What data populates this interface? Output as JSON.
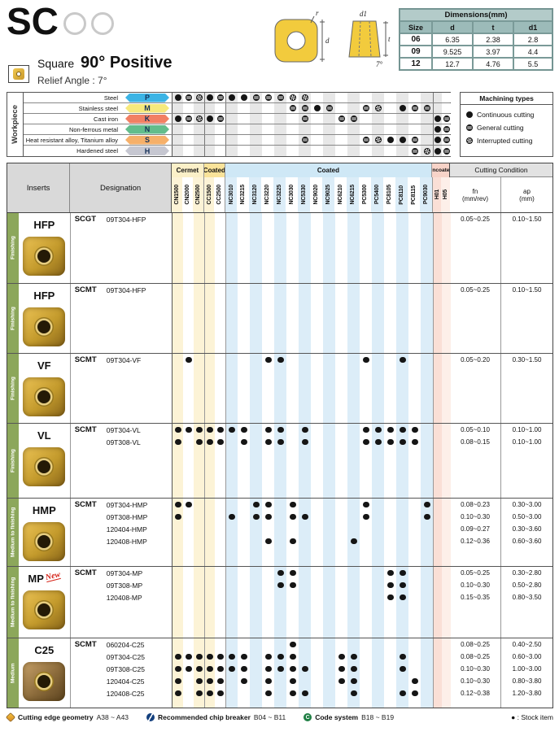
{
  "header": {
    "brand": "SC",
    "shape_label": "Square",
    "title": "90° Positive",
    "relief": "Relief Angle : 7°"
  },
  "drawing_labels": {
    "d": "d",
    "r": "r",
    "t": "t",
    "d1": "d1",
    "angle": "7°"
  },
  "dimensions": {
    "title": "Dimensions(mm)",
    "columns": [
      "Size",
      "d",
      "t",
      "d1"
    ],
    "rows": [
      [
        "06",
        "6.35",
        "2.38",
        "2.8"
      ],
      [
        "09",
        "9.525",
        "3.97",
        "4.4"
      ],
      [
        "12",
        "12.7",
        "4.76",
        "5.5"
      ]
    ]
  },
  "workpiece": {
    "label": "Workpiece",
    "rows": [
      {
        "name": "Steel",
        "code": "P",
        "color": "#3cb4e5",
        "symbols": {
          "CN1500": "c",
          "CN2000": "g",
          "CN2500": "i",
          "CC1500": "c",
          "CC2500": "g",
          "NC3010": "c",
          "NC3215": "c",
          "NC3120": "g",
          "NC3220": "g",
          "NC3225": "g",
          "NC3030": "i",
          "NC5330": "i"
        }
      },
      {
        "name": "Stainless steel",
        "code": "M",
        "color": "#f6e97c",
        "symbols": {
          "NC3030": "g",
          "NC5330": "g",
          "NC9020": "c",
          "NC9025": "g",
          "PC5300": "g",
          "PC5400": "i",
          "PC8110": "c",
          "PC8115": "g",
          "PC9030": "g"
        }
      },
      {
        "name": "Cast iron",
        "code": "K",
        "color": "#f28064",
        "symbols": {
          "CN1500": "c",
          "CN2000": "g",
          "CN2500": "i",
          "CC1500": "c",
          "CC2500": "g",
          "NC5330": "g",
          "NC6210": "g",
          "NC6215": "g",
          "H01": "c",
          "H05": "g"
        }
      },
      {
        "name": "Non-ferrous metal",
        "code": "N",
        "color": "#63bd8c",
        "symbols": {
          "H01": "c",
          "H05": "g"
        }
      },
      {
        "name": "Heat resistant alloy, Titanium alloy",
        "code": "S",
        "color": "#f6b06a",
        "symbols": {
          "NC5330": "g",
          "PC5300": "g",
          "PC5400": "i",
          "PC8105": "c",
          "PC8110": "c",
          "PC8115": "g",
          "H01": "c",
          "H05": "g"
        }
      },
      {
        "name": "Hardened steel",
        "code": "H",
        "color": "#c6c7d1",
        "symbols": {
          "PC8115": "g",
          "PC9030": "i",
          "H01": "c",
          "H05": "g"
        }
      }
    ],
    "legend": {
      "title": "Machining types",
      "items": [
        {
          "symbol": "c",
          "label": "Continuous cutting"
        },
        {
          "symbol": "g",
          "label": "General cutting"
        },
        {
          "symbol": "i",
          "label": "Interrupted cutting"
        }
      ]
    }
  },
  "grade_groups": [
    {
      "label": "Cermet",
      "type": "cermet",
      "grades": [
        "CN1500",
        "CN2000",
        "CN2500"
      ]
    },
    {
      "label": "Coated",
      "type": "coated-y",
      "grades": [
        "CC1500",
        "CC2500"
      ]
    },
    {
      "label": "Coated",
      "type": "coated-b",
      "grades": [
        "NC3010",
        "NC3215",
        "NC3120",
        "NC3220",
        "NC3225",
        "NC3030",
        "NC5330",
        "NC9020",
        "NC9025",
        "NC6210",
        "NC6215",
        "PC5300",
        "PC5400",
        "PC8105",
        "PC8110",
        "PC8115",
        "PC9030"
      ]
    },
    {
      "label": "Uncoated",
      "type": "uncoated",
      "grades": [
        "H01",
        "H05"
      ]
    }
  ],
  "main_headers": {
    "inserts": "Inserts",
    "designation": "Designation",
    "cutting_condition": "Cutting Condition",
    "fn": "fn",
    "fn_unit": "(mm/rev)",
    "ap": "ap",
    "ap_unit": "(mm)"
  },
  "blocks": [
    {
      "label": "HFP",
      "section": "Finishing",
      "series": "SCGT",
      "new_badge": "",
      "style": "gold",
      "rows": [
        {
          "size": "09T304-HFP",
          "dots": [],
          "fn": "0.05~0.25",
          "ap": "0.10~1.50"
        }
      ]
    },
    {
      "label": "HFP",
      "section": "Finishing",
      "series": "SCMT",
      "new_badge": "",
      "style": "gold",
      "rows": [
        {
          "size": "09T304-HFP",
          "dots": [],
          "fn": "0.05~0.25",
          "ap": "0.10~1.50"
        }
      ]
    },
    {
      "label": "VF",
      "section": "Finishing",
      "series": "SCMT",
      "new_badge": "",
      "style": "gold",
      "rows": [
        {
          "size": "09T304-VF",
          "dots": [
            "CN2000",
            "NC3220",
            "NC3225",
            "PC5300",
            "PC8110"
          ],
          "fn": "0.05~0.20",
          "ap": "0.30~1.50"
        }
      ]
    },
    {
      "label": "VL",
      "section": "Finishing",
      "series": "SCMT",
      "new_badge": "",
      "style": "gold",
      "rows": [
        {
          "size": "09T304-VL",
          "dots": [
            "CN1500",
            "CN2000",
            "CN2500",
            "CC1500",
            "CC2500",
            "NC3010",
            "NC3215",
            "NC3220",
            "NC3225",
            "NC5330",
            "PC5300",
            "PC5400",
            "PC8105",
            "PC8110",
            "PC8115"
          ],
          "fn": "0.05~0.10",
          "ap": "0.10~1.00"
        },
        {
          "size": "09T308-VL",
          "dots": [
            "CN1500",
            "CN2500",
            "CC1500",
            "CC2500",
            "NC3215",
            "NC3220",
            "NC3225",
            "NC5330",
            "PC5300",
            "PC5400",
            "PC8105",
            "PC8110",
            "PC8115"
          ],
          "fn": "0.08~0.15",
          "ap": "0.10~1.00"
        }
      ]
    },
    {
      "label": "HMP",
      "section": "Medium to finishing",
      "series": "SCMT",
      "new_badge": "",
      "style": "gold",
      "rows": [
        {
          "size": "09T304-HMP",
          "dots": [
            "CN1500",
            "CN2000",
            "NC3120",
            "NC3220",
            "NC3030",
            "PC5300",
            "PC9030"
          ],
          "fn": "0.08~0.23",
          "ap": "0.30~3.00"
        },
        {
          "size": "09T308-HMP",
          "dots": [
            "CN1500",
            "NC3010",
            "NC3120",
            "NC3220",
            "NC3030",
            "NC5330",
            "PC5300",
            "PC9030"
          ],
          "fn": "0.10~0.30",
          "ap": "0.50~3.00"
        },
        {
          "size": "120404-HMP",
          "dots": [],
          "fn": "0.09~0.27",
          "ap": "0.30~3.60"
        },
        {
          "size": "120408-HMP",
          "dots": [
            "NC3220",
            "NC3030",
            "NC6215"
          ],
          "fn": "0.12~0.36",
          "ap": "0.60~3.60"
        }
      ]
    },
    {
      "label": "MP",
      "section": "Medium to finishing",
      "series": "SCMT",
      "new_badge": "New",
      "style": "gold",
      "rows": [
        {
          "size": "09T304-MP",
          "dots": [
            "NC3225",
            "NC3030",
            "PC8105",
            "PC8110"
          ],
          "fn": "0.05~0.25",
          "ap": "0.30~2.80"
        },
        {
          "size": "09T308-MP",
          "dots": [
            "NC3225",
            "NC3030",
            "PC8105",
            "PC8110"
          ],
          "fn": "0.10~0.30",
          "ap": "0.50~2.80"
        },
        {
          "size": "120408-MP",
          "dots": [
            "PC8105",
            "PC8110"
          ],
          "fn": "0.15~0.35",
          "ap": "0.80~3.50"
        }
      ]
    },
    {
      "label": "C25",
      "section": "Medium",
      "series": "SCMT",
      "new_badge": "",
      "style": "bronze",
      "rows": [
        {
          "size": "060204-C25",
          "dots": [
            "NC3030"
          ],
          "fn": "0.08~0.25",
          "ap": "0.40~2.50"
        },
        {
          "size": "09T304-C25",
          "dots": [
            "CN1500",
            "CN2000",
            "CN2500",
            "CC1500",
            "CC2500",
            "NC3010",
            "NC3215",
            "NC3220",
            "NC3225",
            "NC3030",
            "NC6210",
            "NC6215",
            "PC8110"
          ],
          "fn": "0.08~0.25",
          "ap": "0.60~3.00"
        },
        {
          "size": "09T308-C25",
          "dots": [
            "CN1500",
            "CN2000",
            "CN2500",
            "CC1500",
            "CC2500",
            "NC3010",
            "NC3215",
            "NC3220",
            "NC3225",
            "NC3030",
            "NC5330",
            "NC6210",
            "NC6215",
            "PC8110"
          ],
          "fn": "0.10~0.30",
          "ap": "1.00~3.00"
        },
        {
          "size": "120404-C25",
          "dots": [
            "CN1500",
            "CN2500",
            "CC1500",
            "CC2500",
            "NC3215",
            "NC3220",
            "NC3030",
            "NC6210",
            "NC6215",
            "PC8115"
          ],
          "fn": "0.10~0.30",
          "ap": "0.80~3.80"
        },
        {
          "size": "120408-C25",
          "dots": [
            "CN1500",
            "CN2500",
            "CC1500",
            "CC2500",
            "NC3220",
            "NC3030",
            "NC5330",
            "NC6215",
            "PC8110",
            "PC8115"
          ],
          "fn": "0.12~0.38",
          "ap": "1.20~3.80"
        }
      ]
    }
  ],
  "footer": {
    "refs": [
      {
        "icon": "cutting-edge-geometry-icon",
        "icon_letter": "",
        "label": "Cutting edge geometry",
        "pages": "A38 ~ A43"
      },
      {
        "icon": "chip-breaker-icon",
        "icon_letter": "",
        "label": "Recommended chip breaker",
        "pages": "B04 ~ B11"
      },
      {
        "icon": "code-system-icon",
        "icon_letter": "C",
        "label": "Code system",
        "pages": "B18 ~ B19"
      }
    ],
    "stock_note": "● : Stock item"
  }
}
